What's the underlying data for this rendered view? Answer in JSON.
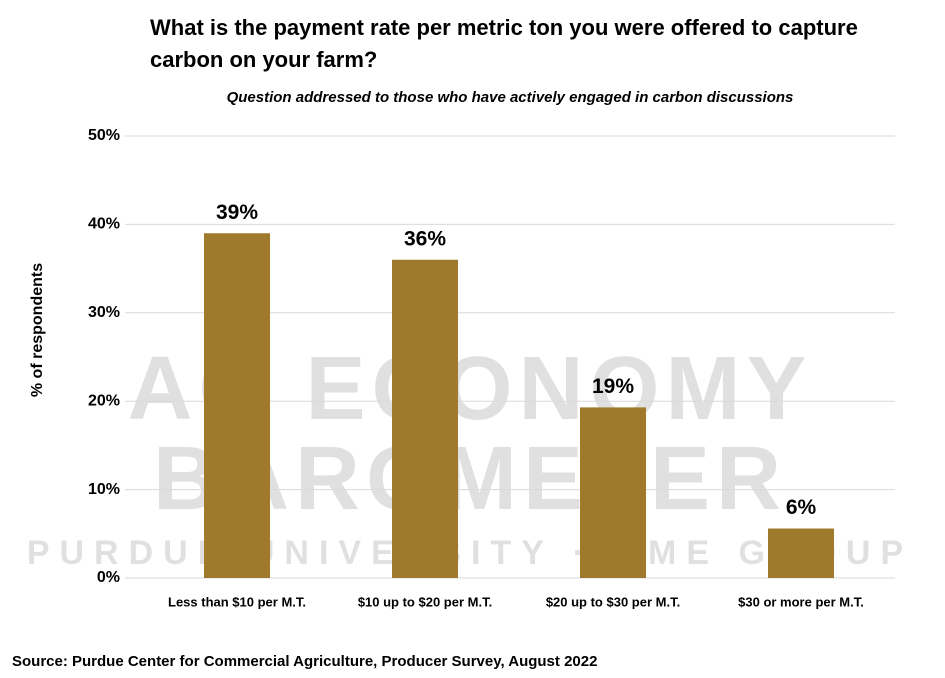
{
  "chart_data": {
    "type": "bar",
    "title": "What is the payment rate per metric ton you were offered to capture carbon on your farm?",
    "subtitle": "Question addressed to those who have actively engaged in carbon discussions",
    "y_label": "% of respondents",
    "categories": [
      "Less than $10 per M.T.",
      "$10 up to $20 per M.T.",
      "$20 up to $30 per M.T.",
      "$30 or more per M.T."
    ],
    "values": [
      39,
      36,
      19.3,
      5.6
    ],
    "value_labels": [
      "39%",
      "36%",
      "19%",
      "6%"
    ],
    "color": "#a07a2c",
    "ylim": [
      0,
      50
    ],
    "yticks": [
      {
        "value": 0,
        "label": "0%"
      },
      {
        "value": 10,
        "label": "10%"
      },
      {
        "value": 20,
        "label": "20%"
      },
      {
        "value": 30,
        "label": "30%"
      },
      {
        "value": 40,
        "label": "40%"
      },
      {
        "value": 50,
        "label": "50%"
      }
    ],
    "grid": true,
    "watermark": [
      "AG ECONOMY",
      "BAROMETER",
      "PURDUE UNIVERSITY · CME GROUP"
    ],
    "source": "Source: Purdue Center for Commercial Agriculture, Producer Survey, August 2022"
  }
}
